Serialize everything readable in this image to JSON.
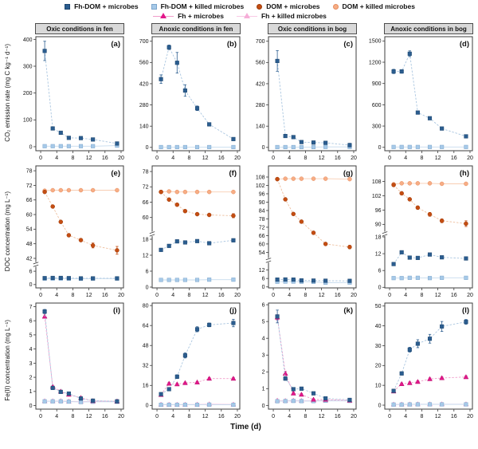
{
  "legend": {
    "row1": [
      {
        "key": "fhdom_microbes",
        "label": "Fh-DOM + microbes"
      },
      {
        "key": "fhdom_killed",
        "label": "Fh-DOM + killed microbes"
      },
      {
        "key": "dom_microbes",
        "label": "DOM + microbes"
      },
      {
        "key": "dom_killed",
        "label": "DOM + killed microbes"
      }
    ],
    "row2": [
      {
        "key": "fh_microbes",
        "label": "Fh + microbes"
      },
      {
        "key": "fh_killed",
        "label": "Fh + killed microbes"
      }
    ]
  },
  "column_headers": [
    "Oxic conditions in fen",
    "Anoxic conditions in fen",
    "Oxic conditions in bog",
    "Anoxic conditions in bog"
  ],
  "axes": {
    "xlabel": "Time (d)",
    "xlim": [
      -1.2,
      20.6
    ],
    "xticks": [
      0,
      4,
      8,
      12,
      16,
      20
    ],
    "x": [
      1,
      3,
      5,
      7,
      10,
      13,
      19
    ],
    "row_ylabels": [
      "CO₂ emission rate (mg C kg⁻¹ d⁻¹)",
      "DOC concentration (mg L⁻¹)",
      "Fe(II) concentration (mg L⁻¹)"
    ]
  },
  "series_styles": {
    "fhdom_microbes": {
      "marker": "square",
      "fill": "#2b5d8f",
      "edge": "#1d466f",
      "line": "#aac6e0",
      "dash": "2.5,1.8"
    },
    "fhdom_killed": {
      "marker": "square",
      "fill": "#a6c9e8",
      "edge": "#7da6cc",
      "line": "#c6dbee",
      "dash": ""
    },
    "dom_microbes": {
      "marker": "circle",
      "fill": "#c44d12",
      "edge": "#9e3c0a",
      "line": "#eec0a0",
      "dash": "2.5,1.8"
    },
    "dom_killed": {
      "marker": "circle",
      "fill": "#f7ad85",
      "edge": "#e68d5e",
      "line": "#f8cdb2",
      "dash": ""
    },
    "fh_microbes": {
      "marker": "triangle",
      "fill": "#e2178a",
      "edge": "#b80f6e",
      "line": "#f09cca",
      "dash": "2.5,1.8"
    },
    "fh_killed": {
      "marker": "triangle",
      "fill": "#f6aed8",
      "edge": "#e671b5",
      "line": "#f8c9e5",
      "dash": ""
    }
  },
  "chart_data": [
    {
      "id": "a",
      "label": "(a)",
      "type": "line",
      "title": "Oxic conditions in fen",
      "range": [
        -15,
        410
      ],
      "yticks": [
        0,
        100,
        200,
        300,
        400
      ],
      "series": [
        {
          "key": "fhdom_killed",
          "y": [
            2,
            2,
            2,
            2,
            2,
            2,
            4
          ]
        },
        {
          "key": "fhdom_microbes",
          "y": [
            357,
            68,
            52,
            33,
            32,
            27,
            12
          ],
          "err": [
            36,
            4,
            3,
            2,
            2,
            2,
            5
          ]
        }
      ]
    },
    {
      "id": "b",
      "label": "(b)",
      "type": "line",
      "title": "Anoxic conditions in fen",
      "range": [
        -22,
        730
      ],
      "yticks": [
        0,
        140,
        280,
        420,
        560,
        700
      ],
      "series": [
        {
          "key": "fhdom_killed",
          "y": [
            2,
            2,
            2,
            2,
            2,
            2,
            2
          ]
        },
        {
          "key": "fhdom_microbes",
          "y": [
            450,
            660,
            558,
            375,
            258,
            152,
            55
          ],
          "err": [
            28,
            15,
            68,
            38,
            15,
            10,
            8
          ]
        }
      ]
    },
    {
      "id": "c",
      "label": "(c)",
      "type": "line",
      "title": "Oxic conditions in bog",
      "range": [
        -22,
        730
      ],
      "yticks": [
        0,
        140,
        280,
        420,
        560,
        700
      ],
      "series": [
        {
          "key": "fhdom_killed",
          "y": [
            2,
            2,
            2,
            2,
            2,
            3,
            3
          ]
        },
        {
          "key": "fhdom_microbes",
          "y": [
            570,
            75,
            68,
            35,
            32,
            30,
            15
          ],
          "err": [
            68,
            8,
            6,
            4,
            4,
            5,
            12
          ]
        }
      ]
    },
    {
      "id": "d",
      "label": "(d)",
      "type": "line",
      "title": "Anoxic conditions in bog",
      "range": [
        -48,
        1560
      ],
      "yticks": [
        0,
        300,
        600,
        900,
        1200,
        1500
      ],
      "series": [
        {
          "key": "fhdom_killed",
          "y": [
            5,
            5,
            5,
            5,
            5,
            5,
            5
          ]
        },
        {
          "key": "fhdom_microbes",
          "y": [
            1070,
            1070,
            1320,
            490,
            410,
            265,
            155
          ],
          "err": [
            30,
            25,
            40,
            20,
            15,
            12,
            10
          ]
        }
      ]
    },
    {
      "id": "e",
      "label": "(e)",
      "type": "line",
      "title": "Oxic conditions in fen",
      "segments": [
        {
          "range": [
            40.5,
            80
          ],
          "ticks": [
            42,
            48,
            54,
            60,
            66,
            72,
            78
          ],
          "frac": 0.82
        },
        {
          "range": [
            -1.5,
            8
          ],
          "ticks": [
            0,
            6
          ],
          "frac": 0.18
        }
      ],
      "series": [
        {
          "key": "dom_killed",
          "y": [
            69.8,
            70,
            70,
            70,
            70,
            70,
            70
          ]
        },
        {
          "key": "dom_microbes",
          "y": [
            69.3,
            63.3,
            57,
            51.5,
            49.5,
            47.3,
            45.3
          ],
          "err": [
            0.5,
            0.5,
            0.6,
            0.6,
            0.6,
            1,
            1.6
          ]
        },
        {
          "key": "fhdom_killed",
          "y": [
            2.7,
            2.7,
            2.7,
            2.7,
            2.6,
            2.7,
            2.7
          ]
        },
        {
          "key": "fhdom_microbes",
          "y": [
            2.9,
            3,
            3,
            2.9,
            2.8,
            2.8,
            2.8
          ]
        }
      ]
    },
    {
      "id": "f",
      "label": "(f)",
      "type": "line",
      "title": "Anoxic conditions in fen",
      "segments": [
        {
          "range": [
            54.5,
            80.2
          ],
          "ticks": [
            60,
            66,
            72,
            78
          ],
          "frac": 0.56
        },
        {
          "range": [
            -0.3,
            19.1
          ],
          "ticks": [
            0,
            6,
            12,
            18
          ],
          "frac": 0.44
        }
      ],
      "series": [
        {
          "key": "dom_killed",
          "y": [
            70,
            70.2,
            70,
            70,
            70,
            70,
            70
          ]
        },
        {
          "key": "dom_microbes",
          "y": [
            70,
            67,
            65,
            62.5,
            61.3,
            61,
            60.7
          ],
          "err": [
            0.6,
            0.5,
            0.5,
            0.5,
            0.5,
            0.5,
            0.8
          ]
        },
        {
          "key": "fhdom_killed",
          "y": [
            2.7,
            2.7,
            2.7,
            2.7,
            2.7,
            2.8,
            2.8
          ]
        },
        {
          "key": "fhdom_microbes",
          "y": [
            14,
            15.5,
            17.2,
            16.8,
            17.3,
            16.5,
            17.6
          ],
          "err": [
            0.5,
            0.4,
            0.5,
            0.5,
            0.5,
            0.4,
            0.6
          ]
        }
      ]
    },
    {
      "id": "g",
      "label": "(g)",
      "type": "line",
      "title": "Oxic conditions in bog",
      "segments": [
        {
          "range": [
            50,
            116
          ],
          "ticks": [
            54,
            60,
            66,
            72,
            78,
            84,
            90,
            96,
            102,
            108
          ],
          "frac": 0.785
        },
        {
          "range": [
            -0.7,
            17.2
          ],
          "ticks": [
            0,
            6,
            12
          ],
          "frac": 0.215
        }
      ],
      "series": [
        {
          "key": "dom_killed",
          "y": [
            106.5,
            106.8,
            106.8,
            106.8,
            106.8,
            106.8,
            106.5
          ]
        },
        {
          "key": "dom_microbes",
          "y": [
            106.5,
            92,
            81.5,
            76,
            68,
            60,
            57.8
          ],
          "err": [
            0.8,
            1,
            1,
            1,
            1,
            1,
            1.2
          ]
        },
        {
          "key": "fhdom_killed",
          "y": [
            3.7,
            3.8,
            3.8,
            3.7,
            3.6,
            3,
            3.1
          ]
        },
        {
          "key": "fhdom_microbes",
          "y": [
            5.2,
            5.3,
            5.2,
            4.6,
            4.5,
            4.4,
            4.3
          ]
        }
      ]
    },
    {
      "id": "h",
      "label": "(h)",
      "type": "line",
      "title": "Anoxic conditions in bog",
      "segments": [
        {
          "range": [
            87,
            114.5
          ],
          "ticks": [
            90,
            96,
            102,
            108
          ],
          "frac": 0.56
        },
        {
          "range": [
            -0.2,
            18.2
          ],
          "ticks": [
            0,
            6,
            12,
            18
          ],
          "frac": 0.44
        }
      ],
      "series": [
        {
          "key": "dom_killed",
          "y": [
            106.8,
            107.2,
            107.2,
            107.2,
            107.2,
            107,
            107
          ]
        },
        {
          "key": "dom_microbes",
          "y": [
            106.5,
            103,
            100.5,
            97,
            94.2,
            91.5,
            90.3
          ],
          "err": [
            0.6,
            0.6,
            0.6,
            0.7,
            0.8,
            0.8,
            1.2
          ]
        },
        {
          "key": "fhdom_killed",
          "y": [
            3.3,
            3.3,
            3.4,
            3.4,
            3.3,
            3.4,
            3.4
          ]
        },
        {
          "key": "fhdom_microbes",
          "y": [
            8.3,
            12.5,
            10.6,
            10.5,
            11.7,
            10.7,
            10.3
          ]
        }
      ]
    },
    {
      "id": "i",
      "label": "(i)",
      "type": "line",
      "title": "Oxic conditions in fen",
      "range": [
        -0.25,
        7.25
      ],
      "yticks": [
        0,
        1,
        2,
        3,
        4,
        5,
        6,
        7
      ],
      "series": [
        {
          "key": "fh_killed",
          "y": [
            0.32,
            0.32,
            0.33,
            0.3,
            0.28,
            0.3,
            0.3
          ]
        },
        {
          "key": "fhdom_killed",
          "y": [
            0.3,
            0.3,
            0.3,
            0.28,
            0.25,
            0.27,
            0.27
          ]
        },
        {
          "key": "fh_microbes",
          "y": [
            6.3,
            1.35,
            1,
            0.78,
            0.55,
            0.33,
            0.3
          ]
        },
        {
          "key": "fhdom_microbes",
          "y": [
            6.65,
            1.25,
            0.97,
            0.85,
            0.5,
            0.35,
            0.3
          ],
          "err": [
            0.15,
            0.06,
            0.05,
            0.08,
            0.05,
            0,
            0
          ]
        }
      ]
    },
    {
      "id": "j",
      "label": "(j)",
      "type": "line",
      "title": "Anoxic conditions in fen",
      "range": [
        -3,
        82
      ],
      "yticks": [
        0,
        16,
        32,
        48,
        64,
        80
      ],
      "series": [
        {
          "key": "fh_killed",
          "y": [
            0.7,
            0.7,
            0.7,
            0.7,
            0.8,
            1,
            0.8
          ]
        },
        {
          "key": "fhdom_killed",
          "y": [
            0.5,
            0.5,
            0.5,
            0.5,
            0.5,
            0.6,
            0.5
          ]
        },
        {
          "key": "fh_microbes",
          "y": [
            8.5,
            17.5,
            17,
            18,
            18.5,
            21.5,
            21.5
          ],
          "err": [
            0.8,
            0.8,
            0.6,
            0.6,
            0.6,
            0.8,
            0.8
          ]
        },
        {
          "key": "fhdom_microbes",
          "y": [
            9,
            13,
            23,
            40,
            61,
            64.5,
            66
          ],
          "err": [
            0.8,
            1,
            1.5,
            2,
            2,
            1.5,
            3
          ]
        }
      ]
    },
    {
      "id": "k",
      "label": "(k)",
      "type": "line",
      "title": "Oxic conditions in bog",
      "range": [
        -0.22,
        6.1
      ],
      "yticks": [
        0,
        1,
        2,
        3,
        4,
        5,
        6
      ],
      "series": [
        {
          "key": "fh_killed",
          "y": [
            0.3,
            0.28,
            0.3,
            0.28,
            0.28,
            0.3,
            0.28
          ]
        },
        {
          "key": "fhdom_killed",
          "y": [
            0.25,
            0.26,
            0.27,
            0.26,
            0.26,
            0.28,
            0.27
          ]
        },
        {
          "key": "fh_microbes",
          "y": [
            5.25,
            1.9,
            0.72,
            0.65,
            0.35,
            0.35,
            0.3
          ],
          "err": [
            0.15,
            0.12,
            0.06,
            0.05,
            0.04,
            0.04,
            0.04
          ]
        },
        {
          "key": "fhdom_microbes",
          "y": [
            5.3,
            1.6,
            0.97,
            1,
            0.72,
            0.42,
            0.33
          ],
          "err": [
            0.38,
            0.1,
            0.06,
            0.06,
            0.05,
            0.04,
            0.04
          ]
        }
      ]
    },
    {
      "id": "l",
      "label": "(l)",
      "type": "line",
      "title": "Anoxic conditions in bog",
      "range": [
        -2,
        51.5
      ],
      "yticks": [
        0,
        10,
        20,
        30,
        40,
        50
      ],
      "series": [
        {
          "key": "fh_killed",
          "y": [
            0.4,
            0.4,
            0.45,
            0.5,
            0.5,
            0.5,
            0.5
          ]
        },
        {
          "key": "fhdom_killed",
          "y": [
            0.3,
            0.3,
            0.35,
            0.4,
            0.4,
            0.4,
            0.4
          ]
        },
        {
          "key": "fh_microbes",
          "y": [
            7,
            10.7,
            11.2,
            11.8,
            13.2,
            13.7,
            14.2
          ],
          "err": [
            0.5,
            0.5,
            0.5,
            0.5,
            0.5,
            0.5,
            0.6
          ]
        },
        {
          "key": "fhdom_microbes",
          "y": [
            7.2,
            16,
            28,
            31,
            33.5,
            39.7,
            42
          ],
          "err": [
            0.8,
            0.8,
            1.2,
            2,
            2.2,
            2.5,
            1.2
          ]
        }
      ]
    }
  ]
}
